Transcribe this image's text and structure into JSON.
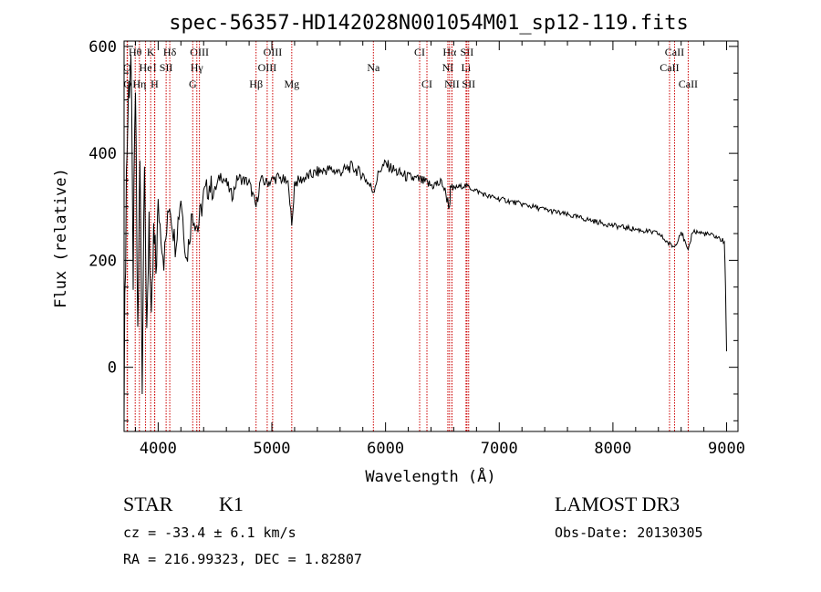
{
  "chart_data": {
    "type": "line",
    "title": "spec-56357-HD142028N001054M01_sp12-119.fits",
    "xlabel": "Wavelength (Å)",
    "ylabel": "Flux (relative)",
    "xlim": [
      3700,
      9100
    ],
    "ylim": [
      -120,
      610
    ],
    "xticks": [
      4000,
      5000,
      6000,
      7000,
      8000,
      9000
    ],
    "yticks": [
      0,
      200,
      400,
      600
    ],
    "series": [
      {
        "name": "spectrum",
        "x": [
          3700,
          3720,
          3740,
          3760,
          3780,
          3800,
          3820,
          3840,
          3860,
          3880,
          3900,
          3920,
          3940,
          3960,
          3980,
          4000,
          4050,
          4100,
          4150,
          4200,
          4250,
          4300,
          4350,
          4400,
          4450,
          4500,
          4550,
          4600,
          4650,
          4700,
          4750,
          4800,
          4861,
          4900,
          4950,
          5000,
          5050,
          5100,
          5150,
          5175,
          5200,
          5300,
          5400,
          5500,
          5600,
          5700,
          5800,
          5893,
          5950,
          6000,
          6100,
          6200,
          6300,
          6400,
          6500,
          6563,
          6570,
          6600,
          6700,
          6800,
          6900,
          7000,
          7200,
          7400,
          7600,
          7800,
          8000,
          8200,
          8400,
          8498,
          8542,
          8600,
          8662,
          8700,
          8800,
          8900,
          8980,
          8990,
          9000
        ],
        "y": [
          -40,
          360,
          520,
          580,
          180,
          520,
          60,
          380,
          -10,
          430,
          20,
          300,
          50,
          240,
          180,
          300,
          200,
          310,
          230,
          320,
          200,
          290,
          260,
          320,
          340,
          330,
          360,
          345,
          320,
          355,
          350,
          345,
          300,
          350,
          345,
          350,
          355,
          350,
          340,
          260,
          345,
          355,
          365,
          370,
          365,
          375,
          360,
          330,
          370,
          380,
          365,
          355,
          350,
          340,
          345,
          300,
          330,
          335,
          340,
          330,
          320,
          315,
          305,
          295,
          285,
          275,
          265,
          258,
          250,
          230,
          225,
          255,
          215,
          255,
          250,
          245,
          235,
          150,
          30
        ]
      }
    ],
    "line_markers": [
      {
        "label": "Hθ",
        "x": 3798,
        "row": 1
      },
      {
        "label": "O",
        "x": 3727,
        "row": 2
      },
      {
        "label": "O",
        "x": 3730,
        "row": 3
      },
      {
        "label": "K",
        "x": 3934,
        "row": 1
      },
      {
        "label": "He",
        "x": 3889,
        "row": 2
      },
      {
        "label": "Hη",
        "x": 3835,
        "row": 3
      },
      {
        "label": "I",
        "x": 3970,
        "row": 2
      },
      {
        "label": "H",
        "x": 3968,
        "row": 3
      },
      {
        "label": "SII",
        "x": 4070,
        "row": 2
      },
      {
        "label": "Hδ",
        "x": 4102,
        "row": 1
      },
      {
        "label": "OIII",
        "x": 4363,
        "row": 1
      },
      {
        "label": "Hγ",
        "x": 4340,
        "row": 2
      },
      {
        "label": "G",
        "x": 4304,
        "row": 3
      },
      {
        "label": "OIII",
        "x": 5007,
        "row": 1
      },
      {
        "label": "OIII",
        "x": 4959,
        "row": 2
      },
      {
        "label": "Hβ",
        "x": 4861,
        "row": 3
      },
      {
        "label": "Mg",
        "x": 5175,
        "row": 3
      },
      {
        "label": "Na",
        "x": 5893,
        "row": 2
      },
      {
        "label": "CI",
        "x": 6300,
        "row": 1
      },
      {
        "label": "CI",
        "x": 6364,
        "row": 3
      },
      {
        "label": "Hα",
        "x": 6563,
        "row": 1
      },
      {
        "label": "SII",
        "x": 6716,
        "row": 1
      },
      {
        "label": "NI",
        "x": 6548,
        "row": 2
      },
      {
        "label": "I",
        "x": 6584,
        "row": 2
      },
      {
        "label": "Li",
        "x": 6708,
        "row": 2
      },
      {
        "label": "NII",
        "x": 6584,
        "row": 3
      },
      {
        "label": "SII",
        "x": 6731,
        "row": 3
      },
      {
        "label": "CaII",
        "x": 8542,
        "row": 1
      },
      {
        "label": "CaII",
        "x": 8498,
        "row": 2
      },
      {
        "label": "CaII",
        "x": 8662,
        "row": 3
      }
    ],
    "marker_color": "#cc0000",
    "line_color": "#000000"
  },
  "info": {
    "class_label": "STAR",
    "subclass_label": "K1",
    "survey_label": "LAMOST DR3",
    "cz_text": "cz = -33.4 ± 6.1 km/s",
    "obs_date_text": "Obs-Date: 20130305",
    "coords_text": "RA = 216.99323, DEC =    1.82807"
  }
}
